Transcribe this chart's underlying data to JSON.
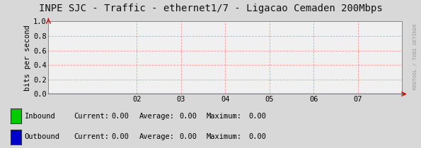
{
  "title": "INPE SJC - Traffic - ethernet1/7 - Ligacao Cemaden 200Mbps",
  "ylabel": "bits per second",
  "xlim": [
    0,
    8
  ],
  "ylim": [
    0,
    1.0
  ],
  "xticks": [
    2,
    3,
    4,
    5,
    6,
    7
  ],
  "xtick_labels": [
    "02",
    "03",
    "04",
    "05",
    "06",
    "07"
  ],
  "yticks": [
    0.0,
    0.2,
    0.4,
    0.6,
    0.8,
    1.0
  ],
  "bg_color": "#d8d8d8",
  "plot_bg_color": "#f0f0f0",
  "grid_color": "#ff9999",
  "arrow_color": "#cc0000",
  "title_fontsize": 10,
  "axis_fontsize": 7.5,
  "tick_fontsize": 7.5,
  "legend_items": [
    {
      "label": "Inbound",
      "color": "#00cc00"
    },
    {
      "label": "Outbound",
      "color": "#0000cc"
    }
  ],
  "legend_stats": [
    {
      "current": "0.00",
      "average": "0.00",
      "maximum": "0.00"
    },
    {
      "current": "0.00",
      "average": "0.00",
      "maximum": "0.00"
    }
  ],
  "watermark": "RRDTOOL / TOBI OETIKER",
  "watermark_color": "#999999"
}
